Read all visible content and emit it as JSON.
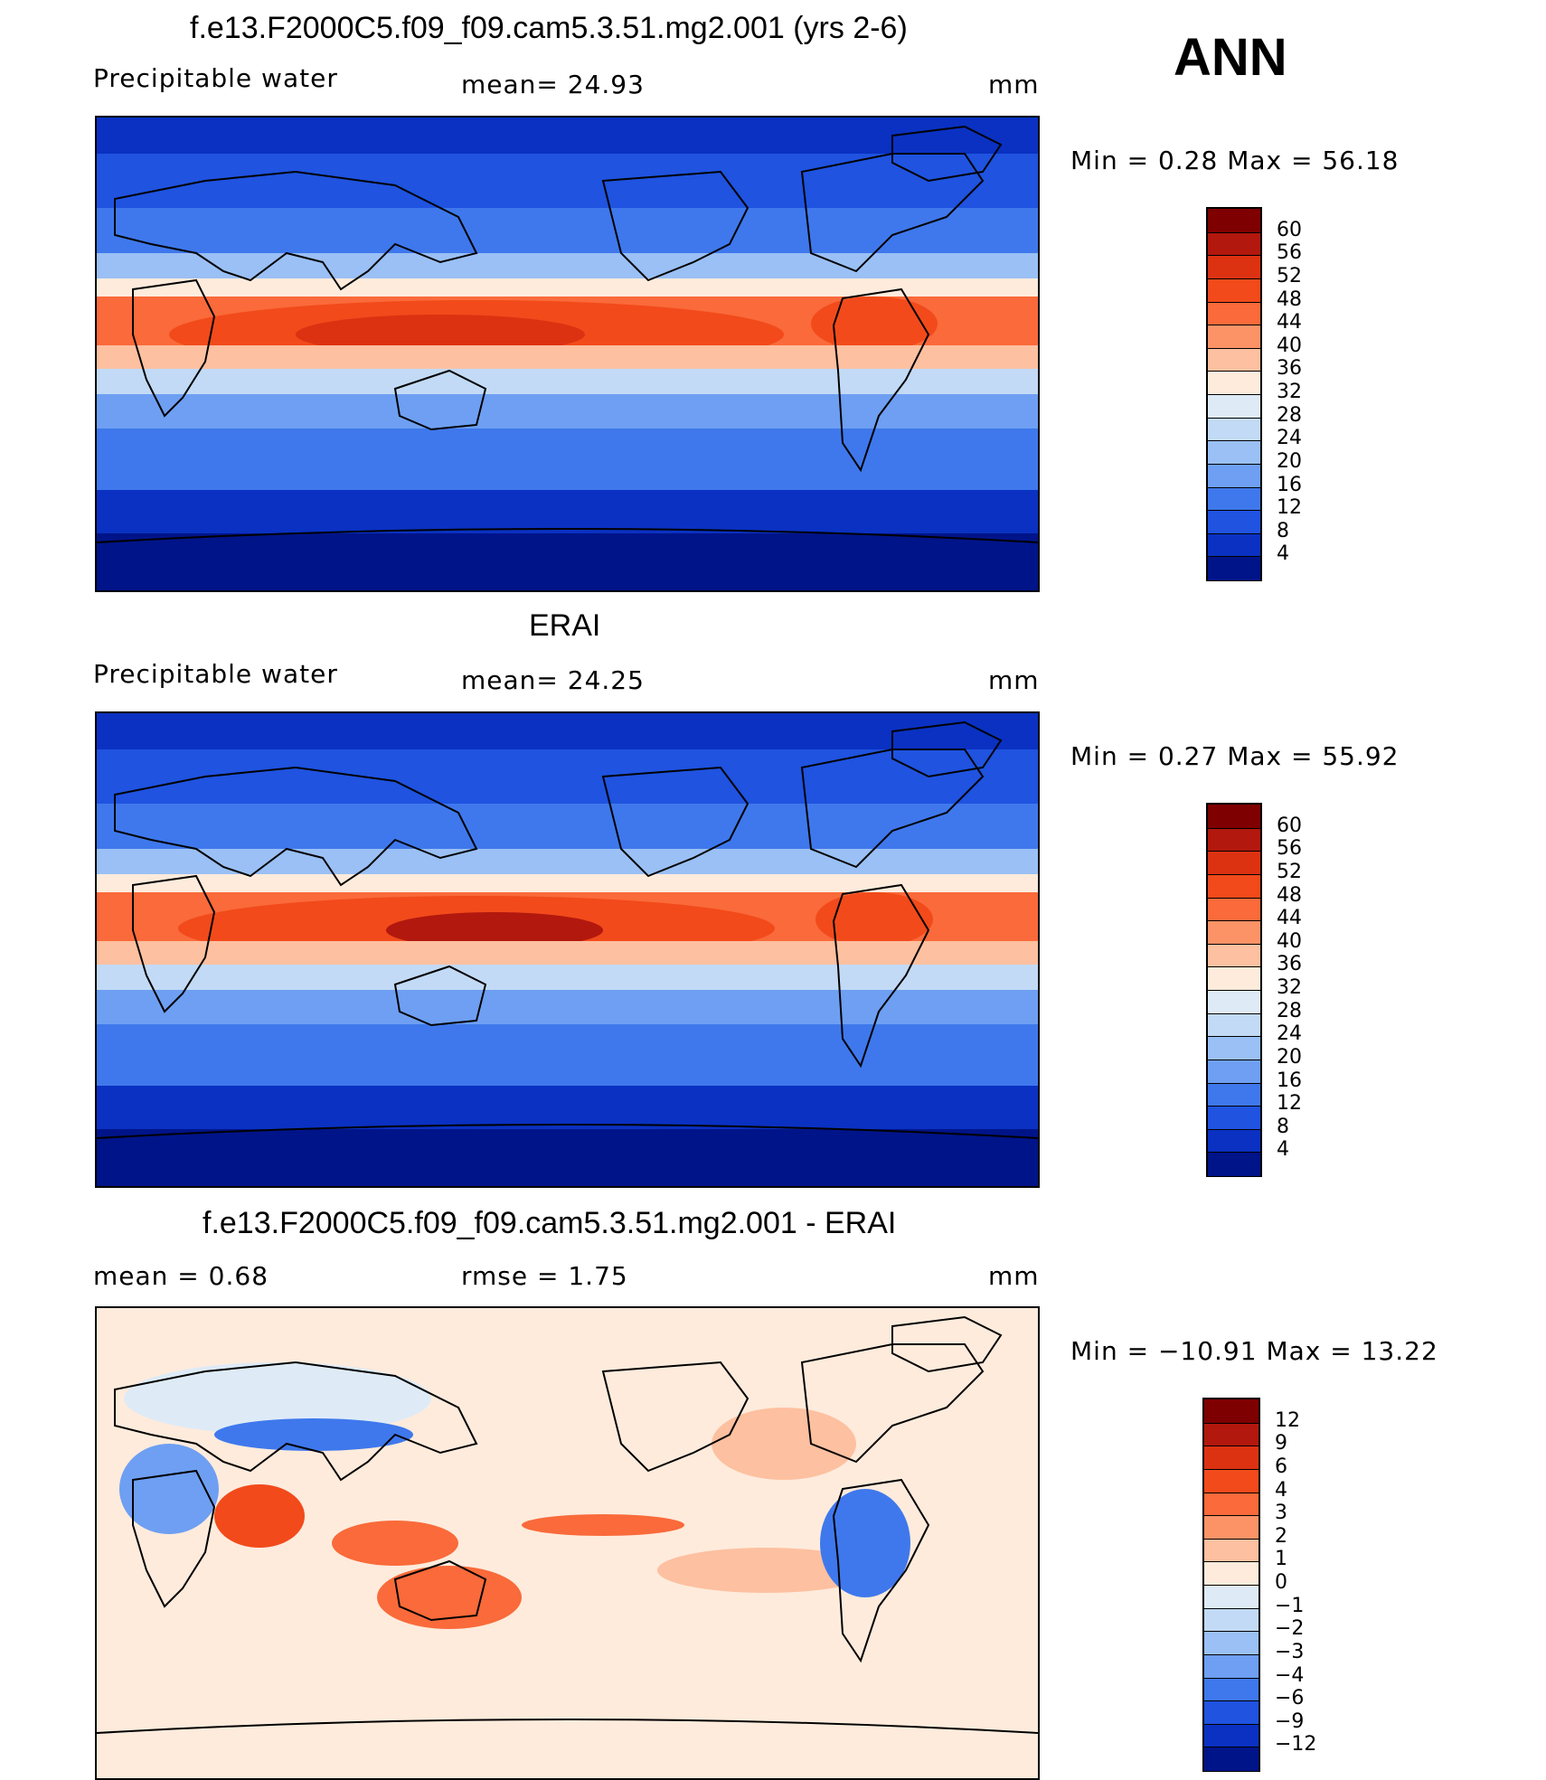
{
  "season": "ANN",
  "panels": [
    {
      "id": "model",
      "title": "f.e13.F2000C5.f09_f09.cam5.3.51.mg2.001 (yrs 2-6)",
      "left_label": "Precipitable  water",
      "center_label": "mean=   24.93",
      "units": "mm",
      "minmax": "Min  =     0.28  Max  =    56.18",
      "colorbar": {
        "labels": [
          "60",
          "56",
          "52",
          "48",
          "44",
          "40",
          "36",
          "32",
          "28",
          "24",
          "20",
          "16",
          "12",
          "8",
          "4"
        ],
        "colors": [
          "#7f0000",
          "#b2180e",
          "#dc3212",
          "#f24a1b",
          "#fa6a3a",
          "#fc9367",
          "#fdc0a0",
          "#feebdc",
          "#deebf7",
          "#c2daf5",
          "#9ac0f5",
          "#6e9ff2",
          "#3f78ec",
          "#1f53e0",
          "#0a31c2",
          "#001489"
        ]
      }
    },
    {
      "id": "obs",
      "title": "ERAI",
      "left_label": "Precipitable  water",
      "center_label": "mean=   24.25",
      "units": "mm",
      "minmax": "Min  =     0.27  Max  =    55.92",
      "colorbar": {
        "labels": [
          "60",
          "56",
          "52",
          "48",
          "44",
          "40",
          "36",
          "32",
          "28",
          "24",
          "20",
          "16",
          "12",
          "8",
          "4"
        ],
        "colors": [
          "#7f0000",
          "#b2180e",
          "#dc3212",
          "#f24a1b",
          "#fa6a3a",
          "#fc9367",
          "#fdc0a0",
          "#feebdc",
          "#deebf7",
          "#c2daf5",
          "#9ac0f5",
          "#6e9ff2",
          "#3f78ec",
          "#1f53e0",
          "#0a31c2",
          "#001489"
        ]
      }
    },
    {
      "id": "diff",
      "title": "f.e13.F2000C5.f09_f09.cam5.3.51.mg2.001 - ERAI",
      "left_label": "mean  =     0.68",
      "center_label": "rmse  =     1.75",
      "units": "mm",
      "minmax": "Min  = −10.91  Max  =    13.22",
      "colorbar": {
        "labels": [
          "12",
          "9",
          "6",
          "4",
          "3",
          "2",
          "1",
          "0",
          "−1",
          "−2",
          "−3",
          "−4",
          "−6",
          "−9",
          "−12"
        ],
        "colors": [
          "#7f0000",
          "#b2180e",
          "#dc3212",
          "#f24a1b",
          "#fa6a3a",
          "#fc9367",
          "#fdc0a0",
          "#feebdc",
          "#deebf7",
          "#c2daf5",
          "#9ac0f5",
          "#6e9ff2",
          "#3f78ec",
          "#1f53e0",
          "#0a31c2",
          "#001489"
        ]
      }
    }
  ]
}
